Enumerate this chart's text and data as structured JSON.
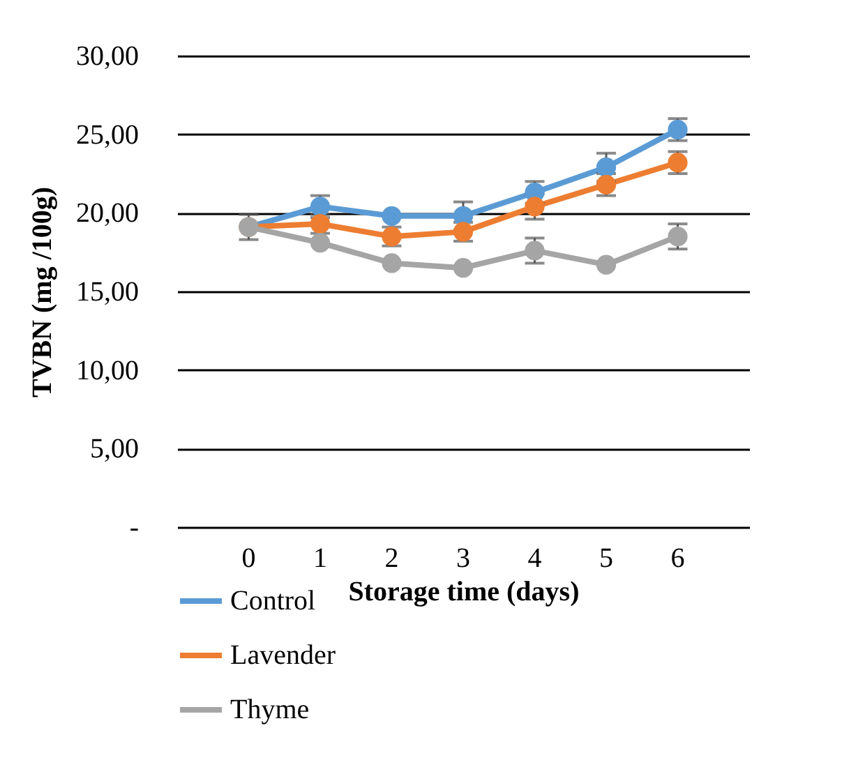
{
  "chart_data": {
    "type": "line",
    "xlabel": "Storage time (days)",
    "ylabel": "TVBN (mg /100g)",
    "categories": [
      "0",
      "1",
      "2",
      "3",
      "4",
      "5",
      "6"
    ],
    "series": [
      {
        "name": "Control",
        "color": "#5b9bd5",
        "values": [
          19.1,
          20.4,
          19.8,
          19.8,
          21.3,
          22.9,
          25.3
        ],
        "errors": [
          null,
          0.7,
          null,
          0.9,
          0.7,
          0.9,
          0.7
        ]
      },
      {
        "name": "Lavender",
        "color": "#ed7d31",
        "values": [
          19.1,
          19.3,
          18.5,
          18.8,
          20.4,
          21.8,
          23.2
        ],
        "errors": [
          null,
          0.6,
          0.6,
          0.6,
          0.8,
          0.7,
          0.7
        ]
      },
      {
        "name": "Thyme",
        "color": "#a5a5a5",
        "values": [
          19.1,
          18.1,
          16.8,
          16.5,
          17.6,
          16.7,
          18.5
        ],
        "errors": [
          0.8,
          null,
          null,
          null,
          0.8,
          null,
          0.8
        ]
      }
    ],
    "ylim": [
      0,
      30
    ],
    "yticks": [
      {
        "value": 0,
        "label": "-"
      },
      {
        "value": 5,
        "label": "5,00"
      },
      {
        "value": 10,
        "label": "10,00"
      },
      {
        "value": 15,
        "label": "15,00"
      },
      {
        "value": 20,
        "label": "20,00"
      },
      {
        "value": 25,
        "label": "25,00"
      },
      {
        "value": 30,
        "label": "30,00"
      }
    ],
    "grid": "y",
    "legend": "bottom left",
    "marker": "circle",
    "line_style": "solid"
  }
}
